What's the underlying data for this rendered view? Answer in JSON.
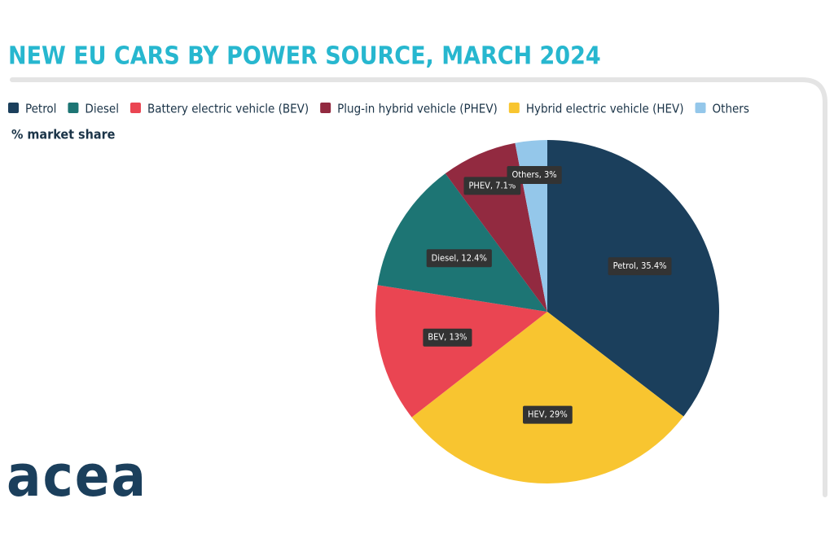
{
  "chart_data": {
    "type": "pie",
    "title": "NEW EU CARS BY POWER SOURCE, MARCH 2024",
    "subtitle": "% market share",
    "legend": [
      {
        "name": "Petrol",
        "color": "#1b3f5c"
      },
      {
        "name": "Diesel",
        "color": "#1d7574"
      },
      {
        "name": "Battery electric vehicle (BEV)",
        "color": "#ea4552"
      },
      {
        "name": "Plug-in hybrid vehicle (PHEV)",
        "color": "#922a40"
      },
      {
        "name": "Hybrid electric vehicle (HEV)",
        "color": "#f8c530"
      },
      {
        "name": "Others",
        "color": "#94c7ea"
      }
    ],
    "values": [
      35.4,
      29,
      13,
      12.4,
      7.1,
      3
    ],
    "value_labels": [
      "Petrol, 35.4%",
      "HEV, 29%",
      "BEV, 13%",
      "Diesel, 12.4%",
      "PHEV, 7.1%",
      "Others, 3%"
    ],
    "colors": [
      "#1b3f5c",
      "#f8c530",
      "#ea4552",
      "#1d7574",
      "#922a40",
      "#94c7ea"
    ]
  },
  "logo": "acea"
}
